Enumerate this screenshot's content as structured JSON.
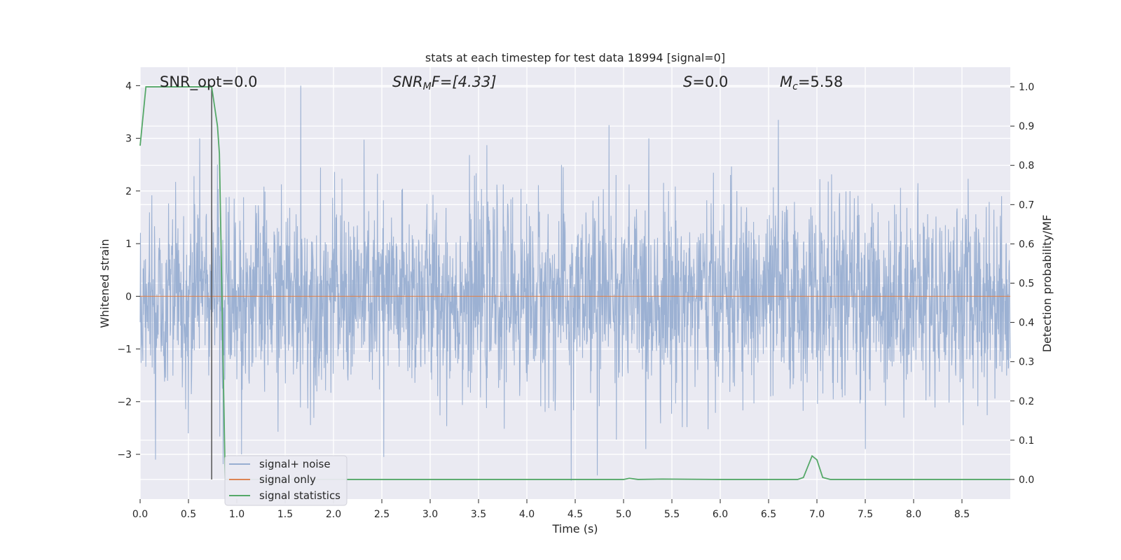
{
  "chart_data": {
    "type": "line",
    "title": "stats at each timestep for test data 18994 [signal=0]",
    "xlabel": "Time (s)",
    "ylabel_left": "Whitened strain",
    "ylabel_right": "Detection probability/MF",
    "xlim": [
      0.0,
      9.0
    ],
    "ylim_left": [
      -3.85,
      4.35
    ],
    "ylim_right": [
      -0.05,
      1.05
    ],
    "xticks": [
      "0.0",
      "0.5",
      "1.0",
      "1.5",
      "2.0",
      "2.5",
      "3.0",
      "3.5",
      "4.0",
      "4.5",
      "5.0",
      "5.5",
      "6.0",
      "6.5",
      "7.0",
      "7.5",
      "8.0",
      "8.5"
    ],
    "yticks_left": [
      "4",
      "3",
      "2",
      "1",
      "0",
      "−1",
      "−2",
      "−3"
    ],
    "yticks_right": [
      "1.0",
      "0.9",
      "0.8",
      "0.7",
      "0.6",
      "0.5",
      "0.4",
      "0.3",
      "0.2",
      "0.1",
      "0.0"
    ],
    "grid": true,
    "legend_position": "lower-left",
    "annotations": {
      "snr_opt": "SNR_opt=0.0",
      "snr_mf_main": "SNR",
      "snr_mf_sub": "M",
      "snr_mf_tail": "F=[4.33]",
      "s_main": "S",
      "s_tail": "=0.0",
      "mc_main": "M",
      "mc_sub": "c",
      "mc_tail": "=5.58"
    },
    "marker_line_x": 0.74,
    "series": [
      {
        "name": "signal+ noise",
        "axis": "left",
        "color": "#98aed1",
        "note_envelope": "noise fluctuates roughly between -3.5 and 4.0 over full time range",
        "peaks": [
          {
            "x": 0.16,
            "y": -3.1
          },
          {
            "x": 0.5,
            "y": -2.6
          },
          {
            "x": 0.8,
            "y": 2.5
          },
          {
            "x": 1.05,
            "y": -3.0
          },
          {
            "x": 1.66,
            "y": 4.0
          },
          {
            "x": 2.52,
            "y": -3.05
          },
          {
            "x": 4.46,
            "y": -3.5
          },
          {
            "x": 4.73,
            "y": -3.4
          },
          {
            "x": 4.85,
            "y": 3.25
          },
          {
            "x": 5.23,
            "y": -2.9
          },
          {
            "x": 6.6,
            "y": 3.35
          },
          {
            "x": 7.5,
            "y": -2.9
          }
        ]
      },
      {
        "name": "signal only",
        "axis": "left",
        "color": "#dd8452",
        "x": [
          0.0,
          9.0
        ],
        "y": [
          0.0,
          0.0
        ]
      },
      {
        "name": "signal statistics",
        "axis": "right",
        "color": "#55a868",
        "x": [
          0.0,
          0.06,
          0.1,
          0.2,
          0.5,
          0.7,
          0.74,
          0.8,
          0.82,
          0.88,
          0.95,
          1.0,
          2.0,
          3.0,
          4.0,
          5.0,
          5.06,
          5.15,
          5.4,
          6.0,
          6.8,
          6.86,
          6.95,
          7.0,
          7.06,
          7.14,
          7.5,
          8.0,
          9.0
        ],
        "y": [
          0.85,
          1.0,
          1.0,
          1.0,
          1.0,
          1.0,
          1.0,
          0.9,
          0.83,
          0.0,
          0.0,
          0.0,
          0.0,
          0.0,
          0.0,
          0.0,
          0.003,
          0.0,
          0.001,
          0.0,
          0.0,
          0.005,
          0.06,
          0.05,
          0.005,
          0.0,
          0.0,
          0.0,
          0.0
        ]
      }
    ]
  }
}
